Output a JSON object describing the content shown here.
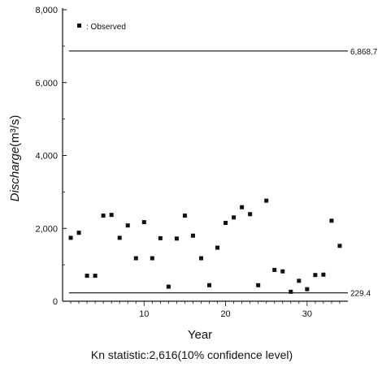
{
  "chart_data": {
    "type": "scatter",
    "title": "",
    "xlabel": "Year",
    "ylabel_main": "Discharge",
    "ylabel_unit": "(m³/s)",
    "footnote": "Kn statistic:2,616(10% confidence level)",
    "xlim": [
      0,
      35
    ],
    "ylim": [
      0,
      8000
    ],
    "x_ticks": [
      10,
      20,
      30
    ],
    "y_ticks": [
      0,
      2000,
      4000,
      6000,
      8000
    ],
    "y_tick_labels": [
      "0",
      "2,000",
      "4,000",
      "6,000",
      "8,000"
    ],
    "legend": {
      "label": ": Observed",
      "position": "top-left"
    },
    "grid": false,
    "reference_lines": [
      {
        "y": 6868.7,
        "label": "6,868.7"
      },
      {
        "y": 229.4,
        "label": "229.4"
      }
    ],
    "series": [
      {
        "name": "Observed",
        "color": "#111111",
        "x": [
          1,
          2,
          3,
          4,
          5,
          6,
          7,
          8,
          9,
          10,
          11,
          12,
          13,
          14,
          15,
          16,
          17,
          18,
          19,
          20,
          21,
          22,
          23,
          24,
          25,
          26,
          27,
          28,
          29,
          30,
          31,
          32,
          33,
          34
        ],
        "y": [
          1740,
          1880,
          700,
          700,
          2350,
          2370,
          1740,
          2080,
          1180,
          2170,
          1180,
          1730,
          400,
          1720,
          2350,
          1800,
          1180,
          440,
          1470,
          2150,
          2300,
          2580,
          2390,
          440,
          2760,
          860,
          820,
          260,
          560,
          330,
          720,
          730,
          2210,
          1520
        ]
      }
    ]
  }
}
